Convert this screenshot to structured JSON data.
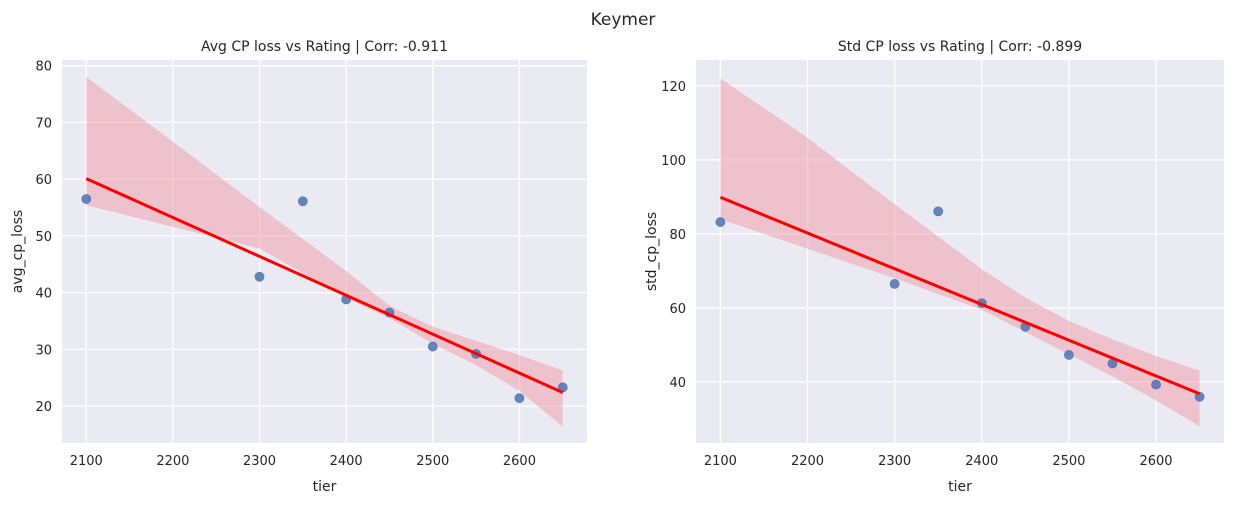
{
  "figure": {
    "suptitle": "Keymer"
  },
  "chart_data": [
    {
      "type": "scatter",
      "title": "Avg CP loss vs Rating | Corr: -0.911",
      "xlabel": "tier",
      "ylabel": "avg_cp_loss",
      "x": [
        2100,
        2300,
        2350,
        2400,
        2450,
        2500,
        2550,
        2600,
        2650
      ],
      "y": [
        56.5,
        42.8,
        56.1,
        38.8,
        36.5,
        30.5,
        29.2,
        21.4,
        23.3
      ],
      "regression": {
        "x": [
          2100,
          2650
        ],
        "y": [
          60.1,
          22.4
        ],
        "ci_x": [
          2100,
          2200,
          2300,
          2400,
          2450,
          2500,
          2550,
          2600,
          2650
        ],
        "ci_upper": [
          78.0,
          66.6,
          55.1,
          43.8,
          37.7,
          34.0,
          31.5,
          29.0,
          26.3
        ],
        "ci_lower": [
          55.4,
          51.6,
          47.8,
          39.1,
          35.5,
          31.0,
          27.2,
          22.7,
          16.4
        ]
      },
      "xlim": [
        2072,
        2678
      ],
      "ylim": [
        13.5,
        81
      ],
      "xticks": [
        2100,
        2200,
        2300,
        2400,
        2500,
        2600
      ],
      "yticks": [
        20,
        30,
        40,
        50,
        60,
        70,
        80
      ],
      "grid": true,
      "colors": {
        "points": "#4c72b0",
        "line": "#ff0000",
        "band": "#ef9aa8",
        "background": "#eaeaf2"
      }
    },
    {
      "type": "scatter",
      "title": "Std CP loss vs Rating | Corr: -0.899",
      "xlabel": "tier",
      "ylabel": "std_cp_loss",
      "x": [
        2100,
        2300,
        2350,
        2400,
        2450,
        2500,
        2550,
        2600,
        2650
      ],
      "y": [
        83.2,
        66.5,
        86.1,
        61.3,
        54.9,
        47.3,
        45.0,
        39.3,
        36.0
      ],
      "regression": {
        "x": [
          2100,
          2650
        ],
        "y": [
          89.9,
          36.8
        ],
        "ci_x": [
          2100,
          2200,
          2300,
          2400,
          2450,
          2500,
          2550,
          2600,
          2650
        ],
        "ci_upper": [
          122.0,
          106.0,
          88.0,
          70.5,
          62.8,
          56.5,
          51.5,
          47.0,
          43.0
        ],
        "ci_lower": [
          84.0,
          76.0,
          68.0,
          59.5,
          53.5,
          47.5,
          41.5,
          35.0,
          28.0
        ]
      },
      "xlim": [
        2072,
        2678
      ],
      "ylim": [
        23.5,
        127
      ],
      "xticks": [
        2100,
        2200,
        2300,
        2400,
        2500,
        2600
      ],
      "yticks": [
        40,
        60,
        80,
        100,
        120
      ],
      "grid": true,
      "colors": {
        "points": "#4c72b0",
        "line": "#ff0000",
        "band": "#ef9aa8",
        "background": "#eaeaf2"
      }
    }
  ]
}
